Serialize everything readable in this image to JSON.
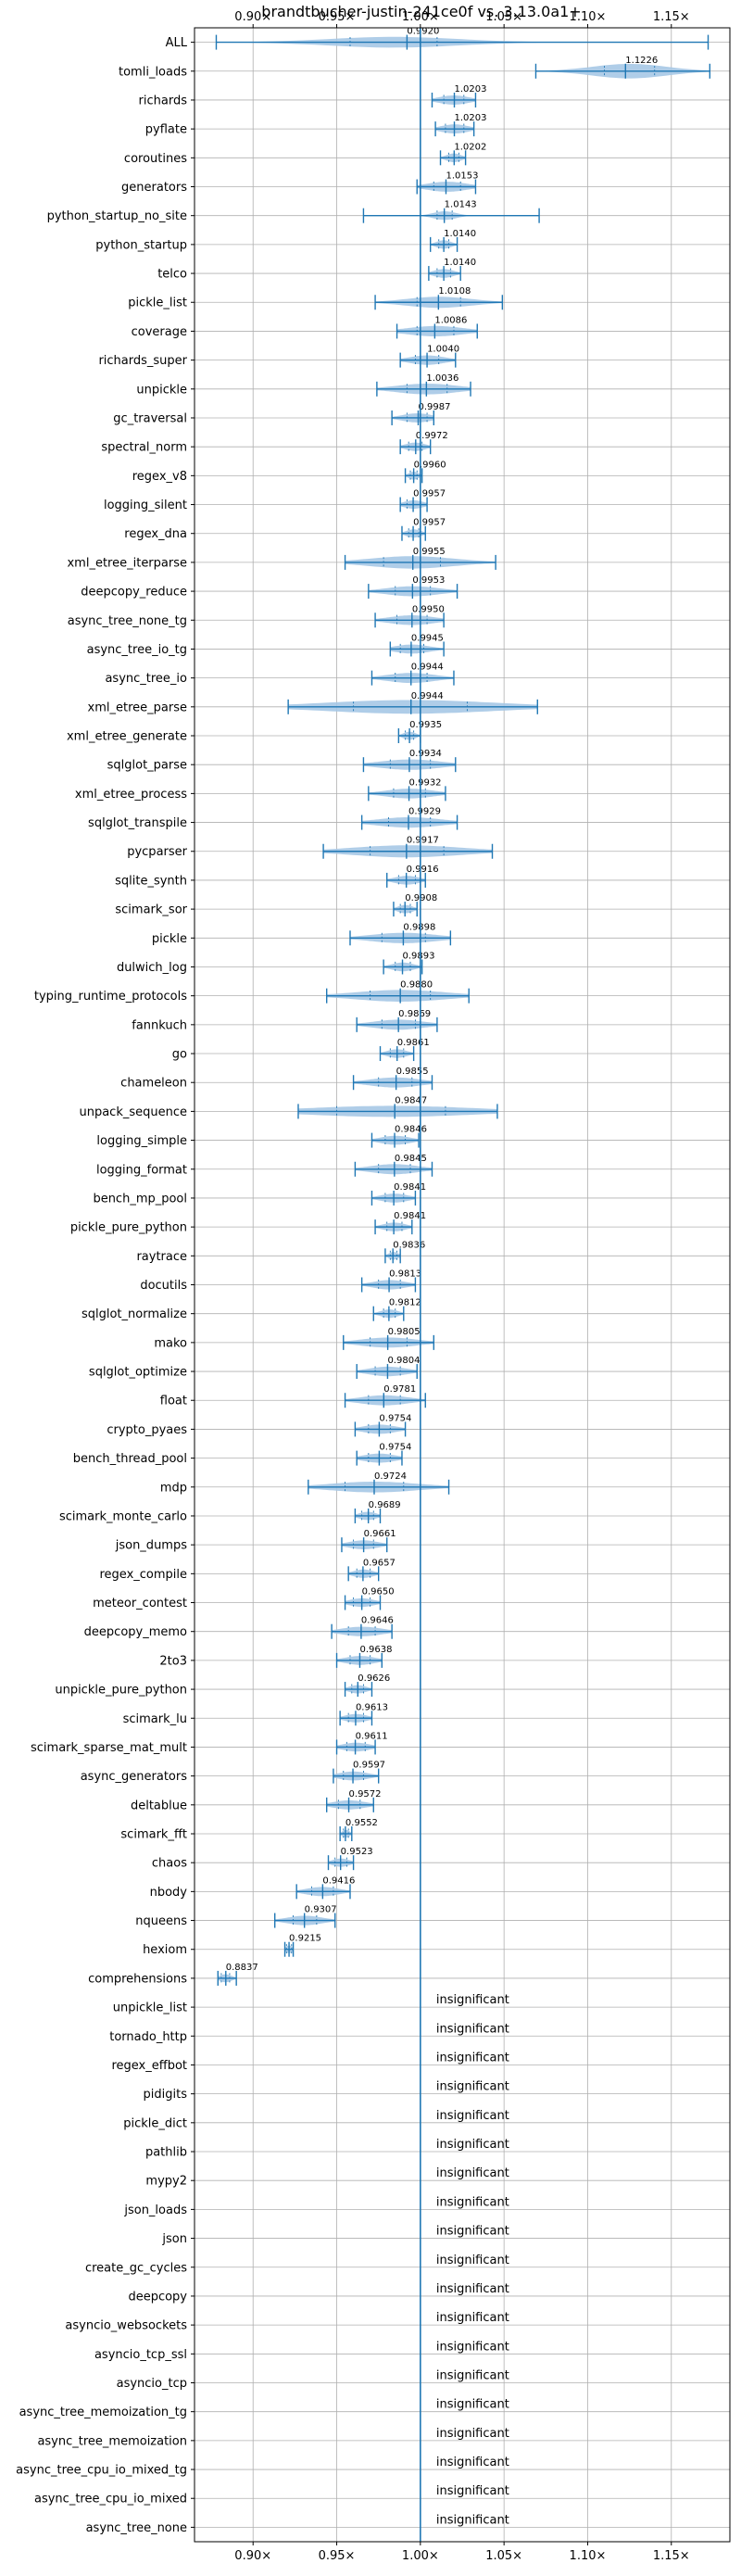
{
  "chart_data": {
    "type": "violin",
    "title": "brandtbucher-justin-241ce0f vs. 3.13.0a1+",
    "xlim": [
      0.865,
      1.185
    ],
    "reference_x": 1.0,
    "x_ticks": [
      0.9,
      0.95,
      1.0,
      1.05,
      1.1,
      1.15
    ],
    "x_tick_labels": [
      "0.90×",
      "0.95×",
      "1.00×",
      "1.05×",
      "1.10×",
      "1.15×"
    ],
    "insignificant_label": "insignificant",
    "colors": {
      "violin": "#a6c8e6",
      "line": "#1f77b4",
      "grid": "#b0b0b0",
      "axis": "#000000"
    },
    "benchmarks": [
      {
        "name": "ALL",
        "value": 0.992,
        "label": "0.9920",
        "min": 0.878,
        "max": 1.172,
        "q1": 0.958,
        "q3": 1.01,
        "spread": 0.022
      },
      {
        "name": "tomli_loads",
        "value": 1.1226,
        "label": "1.1226",
        "min": 1.069,
        "max": 1.173,
        "q1": 1.11,
        "q3": 1.14,
        "spread": 0.045
      },
      {
        "name": "richards",
        "value": 1.0203,
        "label": "1.0203",
        "min": 1.007,
        "max": 1.033,
        "q1": 1.014,
        "q3": 1.026,
        "spread": 0.013
      },
      {
        "name": "pyflate",
        "value": 1.0203,
        "label": "1.0203",
        "min": 1.009,
        "max": 1.032,
        "q1": 1.015,
        "q3": 1.026,
        "spread": 0.012
      },
      {
        "name": "coroutines",
        "value": 1.0202,
        "label": "1.0202",
        "min": 1.012,
        "max": 1.027,
        "q1": 1.017,
        "q3": 1.023,
        "spread": 0.01
      },
      {
        "name": "generators",
        "value": 1.0153,
        "label": "1.0153",
        "min": 0.998,
        "max": 1.033,
        "q1": 1.008,
        "q3": 1.024,
        "spread": 0.018
      },
      {
        "name": "python_startup_no_site",
        "value": 1.0143,
        "label": "1.0143",
        "min": 0.966,
        "max": 1.071,
        "q1": 1.01,
        "q3": 1.019,
        "spread": 0.01
      },
      {
        "name": "python_startup",
        "value": 1.014,
        "label": "1.0140",
        "min": 1.006,
        "max": 1.022,
        "q1": 1.011,
        "q3": 1.017,
        "spread": 0.008
      },
      {
        "name": "telco",
        "value": 1.014,
        "label": "1.0140",
        "min": 1.005,
        "max": 1.024,
        "q1": 1.01,
        "q3": 1.018,
        "spread": 0.01
      },
      {
        "name": "pickle_list",
        "value": 1.0108,
        "label": "1.0108",
        "min": 0.973,
        "max": 1.049,
        "q1": 0.998,
        "q3": 1.024,
        "spread": 0.024
      },
      {
        "name": "coverage",
        "value": 1.0086,
        "label": "1.0086",
        "min": 0.986,
        "max": 1.034,
        "q1": 0.998,
        "q3": 1.02,
        "spread": 0.02
      },
      {
        "name": "richards_super",
        "value": 1.004,
        "label": "1.0040",
        "min": 0.988,
        "max": 1.021,
        "q1": 0.997,
        "q3": 1.011,
        "spread": 0.014
      },
      {
        "name": "unpickle",
        "value": 1.0036,
        "label": "1.0036",
        "min": 0.974,
        "max": 1.03,
        "q1": 0.992,
        "q3": 1.016,
        "spread": 0.022
      },
      {
        "name": "gc_traversal",
        "value": 0.9987,
        "label": "0.9987",
        "min": 0.983,
        "max": 1.008,
        "q1": 0.992,
        "q3": 1.004,
        "spread": 0.012
      },
      {
        "name": "spectral_norm",
        "value": 0.9972,
        "label": "0.9972",
        "min": 0.988,
        "max": 1.006,
        "q1": 0.993,
        "q3": 1.001,
        "spread": 0.008
      },
      {
        "name": "regex_v8",
        "value": 0.996,
        "label": "0.9960",
        "min": 0.991,
        "max": 1.001,
        "q1": 0.994,
        "q3": 0.998,
        "spread": 0.005
      },
      {
        "name": "logging_silent",
        "value": 0.9957,
        "label": "0.9957",
        "min": 0.988,
        "max": 1.004,
        "q1": 0.992,
        "q3": 1.0,
        "spread": 0.008
      },
      {
        "name": "regex_dna",
        "value": 0.9957,
        "label": "0.9957",
        "min": 0.989,
        "max": 1.003,
        "q1": 0.993,
        "q3": 0.999,
        "spread": 0.007
      },
      {
        "name": "xml_etree_iterparse",
        "value": 0.9955,
        "label": "0.9955",
        "min": 0.955,
        "max": 1.045,
        "q1": 0.978,
        "q3": 1.012,
        "spread": 0.032
      },
      {
        "name": "deepcopy_reduce",
        "value": 0.9953,
        "label": "0.9953",
        "min": 0.969,
        "max": 1.022,
        "q1": 0.985,
        "q3": 1.006,
        "spread": 0.018
      },
      {
        "name": "async_tree_none_tg",
        "value": 0.995,
        "label": "0.9950",
        "min": 0.973,
        "max": 1.014,
        "q1": 0.986,
        "q3": 1.004,
        "spread": 0.016
      },
      {
        "name": "async_tree_io_tg",
        "value": 0.9945,
        "label": "0.9945",
        "min": 0.982,
        "max": 1.014,
        "q1": 0.988,
        "q3": 1.002,
        "spread": 0.012
      },
      {
        "name": "async_tree_io",
        "value": 0.9944,
        "label": "0.9944",
        "min": 0.971,
        "max": 1.02,
        "q1": 0.985,
        "q3": 1.004,
        "spread": 0.018
      },
      {
        "name": "xml_etree_parse",
        "value": 0.9944,
        "label": "0.9944",
        "min": 0.921,
        "max": 1.07,
        "q1": 0.96,
        "q3": 1.028,
        "spread": 0.04
      },
      {
        "name": "xml_etree_generate",
        "value": 0.9935,
        "label": "0.9935",
        "min": 0.987,
        "max": 1.0,
        "q1": 0.991,
        "q3": 0.996,
        "spread": 0.006
      },
      {
        "name": "sqlglot_parse",
        "value": 0.9934,
        "label": "0.9934",
        "min": 0.966,
        "max": 1.021,
        "q1": 0.982,
        "q3": 1.006,
        "spread": 0.02
      },
      {
        "name": "xml_etree_process",
        "value": 0.9932,
        "label": "0.9932",
        "min": 0.969,
        "max": 1.015,
        "q1": 0.984,
        "q3": 1.003,
        "spread": 0.016
      },
      {
        "name": "sqlglot_transpile",
        "value": 0.9929,
        "label": "0.9929",
        "min": 0.965,
        "max": 1.022,
        "q1": 0.981,
        "q3": 1.006,
        "spread": 0.02
      },
      {
        "name": "pycparser",
        "value": 0.9917,
        "label": "0.9917",
        "min": 0.942,
        "max": 1.043,
        "q1": 0.97,
        "q3": 1.014,
        "spread": 0.03
      },
      {
        "name": "sqlite_synth",
        "value": 0.9916,
        "label": "0.9916",
        "min": 0.98,
        "max": 1.003,
        "q1": 0.987,
        "q3": 0.997,
        "spread": 0.01
      },
      {
        "name": "scimark_sor",
        "value": 0.9908,
        "label": "0.9908",
        "min": 0.984,
        "max": 0.998,
        "q1": 0.988,
        "q3": 0.994,
        "spread": 0.007
      },
      {
        "name": "pickle",
        "value": 0.9898,
        "label": "0.9898",
        "min": 0.958,
        "max": 1.018,
        "q1": 0.977,
        "q3": 1.003,
        "spread": 0.02
      },
      {
        "name": "dulwich_log",
        "value": 0.9893,
        "label": "0.9893",
        "min": 0.978,
        "max": 1.001,
        "q1": 0.985,
        "q3": 0.994,
        "spread": 0.01
      },
      {
        "name": "typing_runtime_protocols",
        "value": 0.988,
        "label": "0.9880",
        "min": 0.944,
        "max": 1.029,
        "q1": 0.97,
        "q3": 1.006,
        "spread": 0.028
      },
      {
        "name": "fannkuch",
        "value": 0.9869,
        "label": "0.9869",
        "min": 0.962,
        "max": 1.01,
        "q1": 0.977,
        "q3": 0.997,
        "spread": 0.018
      },
      {
        "name": "go",
        "value": 0.9861,
        "label": "0.9861",
        "min": 0.976,
        "max": 0.996,
        "q1": 0.982,
        "q3": 0.99,
        "spread": 0.009
      },
      {
        "name": "chameleon",
        "value": 0.9855,
        "label": "0.9855",
        "min": 0.96,
        "max": 1.007,
        "q1": 0.975,
        "q3": 0.995,
        "spread": 0.018
      },
      {
        "name": "unpack_sequence",
        "value": 0.9847,
        "label": "0.9847",
        "min": 0.927,
        "max": 1.046,
        "q1": 0.95,
        "q3": 1.015,
        "spread": 0.024
      },
      {
        "name": "logging_simple",
        "value": 0.9846,
        "label": "0.9846",
        "min": 0.971,
        "max": 0.999,
        "q1": 0.979,
        "q3": 0.991,
        "spread": 0.011
      },
      {
        "name": "logging_format",
        "value": 0.9845,
        "label": "0.9845",
        "min": 0.961,
        "max": 1.007,
        "q1": 0.975,
        "q3": 0.994,
        "spread": 0.018
      },
      {
        "name": "bench_mp_pool",
        "value": 0.9841,
        "label": "0.9841",
        "min": 0.971,
        "max": 0.997,
        "q1": 0.979,
        "q3": 0.99,
        "spread": 0.011
      },
      {
        "name": "pickle_pure_python",
        "value": 0.9841,
        "label": "0.9841",
        "min": 0.973,
        "max": 0.995,
        "q1": 0.98,
        "q3": 0.989,
        "spread": 0.01
      },
      {
        "name": "raytrace",
        "value": 0.9836,
        "label": "0.9836",
        "min": 0.979,
        "max": 0.988,
        "q1": 0.982,
        "q3": 0.986,
        "spread": 0.004
      },
      {
        "name": "docutils",
        "value": 0.9813,
        "label": "0.9813",
        "min": 0.965,
        "max": 0.997,
        "q1": 0.975,
        "q3": 0.988,
        "spread": 0.014
      },
      {
        "name": "sqlglot_normalize",
        "value": 0.9812,
        "label": "0.9812",
        "min": 0.972,
        "max": 0.99,
        "q1": 0.978,
        "q3": 0.985,
        "spread": 0.008
      },
      {
        "name": "mako",
        "value": 0.9805,
        "label": "0.9805",
        "min": 0.954,
        "max": 1.008,
        "q1": 0.97,
        "q3": 0.992,
        "spread": 0.018
      },
      {
        "name": "sqlglot_optimize",
        "value": 0.9804,
        "label": "0.9804",
        "min": 0.962,
        "max": 0.998,
        "q1": 0.973,
        "q3": 0.988,
        "spread": 0.015
      },
      {
        "name": "float",
        "value": 0.9781,
        "label": "0.9781",
        "min": 0.955,
        "max": 1.003,
        "q1": 0.969,
        "q3": 0.988,
        "spread": 0.018
      },
      {
        "name": "crypto_pyaes",
        "value": 0.9754,
        "label": "0.9754",
        "min": 0.961,
        "max": 0.991,
        "q1": 0.969,
        "q3": 0.982,
        "spread": 0.013
      },
      {
        "name": "bench_thread_pool",
        "value": 0.9754,
        "label": "0.9754",
        "min": 0.962,
        "max": 0.989,
        "q1": 0.969,
        "q3": 0.982,
        "spread": 0.012
      },
      {
        "name": "mdp",
        "value": 0.9724,
        "label": "0.9724",
        "min": 0.933,
        "max": 1.017,
        "q1": 0.955,
        "q3": 0.99,
        "spread": 0.022
      },
      {
        "name": "scimark_monte_carlo",
        "value": 0.9689,
        "label": "0.9689",
        "min": 0.961,
        "max": 0.976,
        "q1": 0.965,
        "q3": 0.972,
        "spread": 0.007
      },
      {
        "name": "json_dumps",
        "value": 0.9661,
        "label": "0.9661",
        "min": 0.953,
        "max": 0.98,
        "q1": 0.96,
        "q3": 0.972,
        "spread": 0.011
      },
      {
        "name": "regex_compile",
        "value": 0.9657,
        "label": "0.9657",
        "min": 0.957,
        "max": 0.975,
        "q1": 0.962,
        "q3": 0.97,
        "spread": 0.008
      },
      {
        "name": "meteor_contest",
        "value": 0.965,
        "label": "0.9650",
        "min": 0.955,
        "max": 0.976,
        "q1": 0.96,
        "q3": 0.97,
        "spread": 0.009
      },
      {
        "name": "deepcopy_memo",
        "value": 0.9646,
        "label": "0.9646",
        "min": 0.947,
        "max": 0.983,
        "q1": 0.957,
        "q3": 0.973,
        "spread": 0.015
      },
      {
        "name": "2to3",
        "value": 0.9638,
        "label": "0.9638",
        "min": 0.95,
        "max": 0.977,
        "q1": 0.958,
        "q3": 0.97,
        "spread": 0.011
      },
      {
        "name": "unpickle_pure_python",
        "value": 0.9626,
        "label": "0.9626",
        "min": 0.955,
        "max": 0.971,
        "q1": 0.959,
        "q3": 0.966,
        "spread": 0.007
      },
      {
        "name": "scimark_lu",
        "value": 0.9613,
        "label": "0.9613",
        "min": 0.952,
        "max": 0.971,
        "q1": 0.957,
        "q3": 0.966,
        "spread": 0.008
      },
      {
        "name": "scimark_sparse_mat_mult",
        "value": 0.9611,
        "label": "0.9611",
        "min": 0.95,
        "max": 0.973,
        "q1": 0.956,
        "q3": 0.967,
        "spread": 0.01
      },
      {
        "name": "async_generators",
        "value": 0.9597,
        "label": "0.9597",
        "min": 0.948,
        "max": 0.975,
        "q1": 0.954,
        "q3": 0.966,
        "spread": 0.011
      },
      {
        "name": "deltablue",
        "value": 0.9572,
        "label": "0.9572",
        "min": 0.944,
        "max": 0.972,
        "q1": 0.951,
        "q3": 0.964,
        "spread": 0.012
      },
      {
        "name": "scimark_fft",
        "value": 0.9552,
        "label": "0.9552",
        "min": 0.952,
        "max": 0.959,
        "q1": 0.954,
        "q3": 0.957,
        "spread": 0.004
      },
      {
        "name": "chaos",
        "value": 0.9523,
        "label": "0.9523",
        "min": 0.945,
        "max": 0.96,
        "q1": 0.949,
        "q3": 0.956,
        "spread": 0.007
      },
      {
        "name": "nbody",
        "value": 0.9416,
        "label": "0.9416",
        "min": 0.926,
        "max": 0.958,
        "q1": 0.935,
        "q3": 0.948,
        "spread": 0.013
      },
      {
        "name": "nqueens",
        "value": 0.9307,
        "label": "0.9307",
        "min": 0.913,
        "max": 0.949,
        "q1": 0.924,
        "q3": 0.938,
        "spread": 0.014
      },
      {
        "name": "hexiom",
        "value": 0.9215,
        "label": "0.9215",
        "min": 0.919,
        "max": 0.924,
        "q1": 0.92,
        "q3": 0.923,
        "spread": 0.003
      },
      {
        "name": "comprehensions",
        "value": 0.8837,
        "label": "0.8837",
        "min": 0.879,
        "max": 0.89,
        "q1": 0.881,
        "q3": 0.886,
        "spread": 0.005
      },
      {
        "name": "unpickle_list",
        "insignificant": true
      },
      {
        "name": "tornado_http",
        "insignificant": true
      },
      {
        "name": "regex_effbot",
        "insignificant": true
      },
      {
        "name": "pidigits",
        "insignificant": true
      },
      {
        "name": "pickle_dict",
        "insignificant": true
      },
      {
        "name": "pathlib",
        "insignificant": true
      },
      {
        "name": "mypy2",
        "insignificant": true
      },
      {
        "name": "json_loads",
        "insignificant": true
      },
      {
        "name": "json",
        "insignificant": true
      },
      {
        "name": "create_gc_cycles",
        "insignificant": true
      },
      {
        "name": "deepcopy",
        "insignificant": true
      },
      {
        "name": "asyncio_websockets",
        "insignificant": true
      },
      {
        "name": "asyncio_tcp_ssl",
        "insignificant": true
      },
      {
        "name": "asyncio_tcp",
        "insignificant": true
      },
      {
        "name": "async_tree_memoization_tg",
        "insignificant": true
      },
      {
        "name": "async_tree_memoization",
        "insignificant": true
      },
      {
        "name": "async_tree_cpu_io_mixed_tg",
        "insignificant": true
      },
      {
        "name": "async_tree_cpu_io_mixed",
        "insignificant": true
      },
      {
        "name": "async_tree_none",
        "insignificant": true
      }
    ]
  }
}
